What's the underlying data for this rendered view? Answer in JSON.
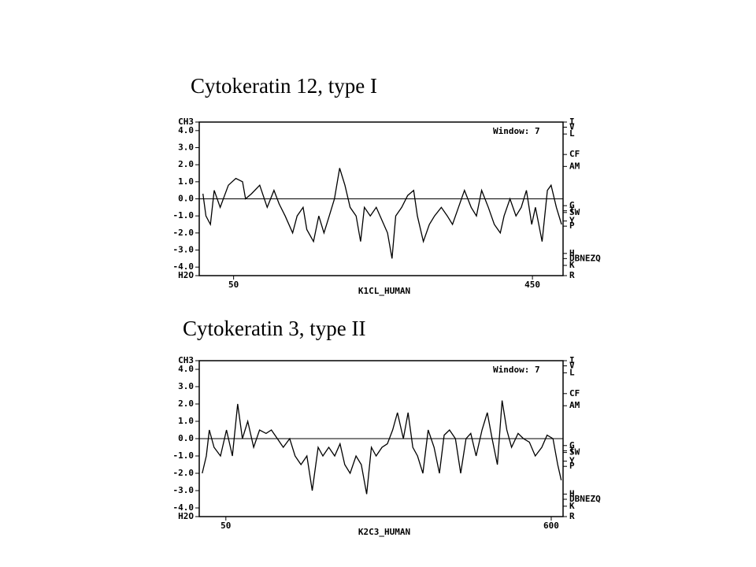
{
  "chart_data": [
    {
      "type": "line",
      "title": "Cytokeratin 12, type I",
      "annotation": "Window: 7",
      "xlabel": "K1CL_HUMAN",
      "xlim": [
        4,
        491
      ],
      "xticks": [
        50,
        450
      ],
      "ylim": [
        -4.5,
        4.5
      ],
      "yticks": [
        {
          "value": 4.5,
          "label": "CH3"
        },
        {
          "value": 4,
          "label": "4.0"
        },
        {
          "value": 3,
          "label": "3.0"
        },
        {
          "value": 2,
          "label": "2.0"
        },
        {
          "value": 1,
          "label": "1.0"
        },
        {
          "value": 0,
          "label": "0.0"
        },
        {
          "value": -1,
          "label": "-1.0"
        },
        {
          "value": -2,
          "label": "-2.0"
        },
        {
          "value": -3,
          "label": "-3.0"
        },
        {
          "value": -4,
          "label": "-4.0"
        },
        {
          "value": -4.5,
          "label": "H2O"
        }
      ],
      "y2lim": [
        -4.5,
        4.5
      ],
      "y2ticks": [
        {
          "value": 4.5,
          "label": "I"
        },
        {
          "value": 4.2,
          "label": "V"
        },
        {
          "value": 3.8,
          "label": "L"
        },
        {
          "value": 2.6,
          "label": "CF"
        },
        {
          "value": 1.9,
          "label": "AM"
        },
        {
          "value": -0.4,
          "label": "G"
        },
        {
          "value": -0.7,
          "label": "T"
        },
        {
          "value": -0.8,
          "label": "SW"
        },
        {
          "value": -1.3,
          "label": "Y"
        },
        {
          "value": -1.6,
          "label": "P"
        },
        {
          "value": -3.2,
          "label": "H"
        },
        {
          "value": -3.5,
          "label": "DBNEZQ"
        },
        {
          "value": -3.9,
          "label": "K"
        },
        {
          "value": -4.5,
          "label": "R"
        }
      ],
      "baseline": 0,
      "color": "#000000",
      "x": [
        9,
        13,
        19,
        24,
        32,
        43,
        53,
        62,
        66,
        74,
        85,
        95,
        104,
        111,
        119,
        129,
        135,
        143,
        148,
        157,
        164,
        171,
        178,
        185,
        192,
        199,
        206,
        214,
        220,
        225,
        233,
        241,
        248,
        256,
        262,
        267,
        275,
        283,
        291,
        296,
        304,
        312,
        319,
        328,
        336,
        343,
        351,
        359,
        368,
        375,
        382,
        391,
        399,
        407,
        412,
        420,
        428,
        435,
        442,
        449,
        454,
        463,
        470,
        475,
        482,
        489
      ],
      "values": [
        0.3,
        -1.0,
        -1.5,
        0.5,
        -0.5,
        0.8,
        1.2,
        1.0,
        0,
        0.3,
        0.8,
        -0.5,
        0.5,
        -0.3,
        -1.0,
        -2.0,
        -1.0,
        -0.5,
        -1.8,
        -2.5,
        -1.0,
        -2.0,
        -1.0,
        0,
        1.8,
        0.8,
        -0.5,
        -1.0,
        -2.5,
        -0.5,
        -1.0,
        -0.5,
        -1.2,
        -2.0,
        -3.5,
        -1.0,
        -0.5,
        0.2,
        0.5,
        -1.0,
        -2.5,
        -1.5,
        -1.0,
        -0.5,
        -1.0,
        -1.5,
        -0.5,
        0.5,
        -0.5,
        -1.0,
        0.5,
        -0.5,
        -1.5,
        -2.0,
        -1.0,
        0.0,
        -1.0,
        -0.5,
        0.5,
        -1.5,
        -0.5,
        -2.5,
        0.5,
        0.8,
        -0.5,
        -1.5
      ]
    },
    {
      "type": "line",
      "title": "Cytokeratin 3, type II",
      "annotation": "Window: 7",
      "xlabel": "K2C3_HUMAN",
      "xlim": [
        5,
        620
      ],
      "xticks": [
        50,
        600
      ],
      "ylim": [
        -4.5,
        4.5
      ],
      "yticks": [
        {
          "value": 4.5,
          "label": "CH3"
        },
        {
          "value": 4,
          "label": "4.0"
        },
        {
          "value": 3,
          "label": "3.0"
        },
        {
          "value": 2,
          "label": "2.0"
        },
        {
          "value": 1,
          "label": "1.0"
        },
        {
          "value": 0,
          "label": "0.0"
        },
        {
          "value": -1,
          "label": "-1.0"
        },
        {
          "value": -2,
          "label": "-2.0"
        },
        {
          "value": -3,
          "label": "-3.0"
        },
        {
          "value": -4,
          "label": "-4.0"
        },
        {
          "value": -4.5,
          "label": "H2O"
        }
      ],
      "y2lim": [
        -4.5,
        4.5
      ],
      "y2ticks": [
        {
          "value": 4.5,
          "label": "I"
        },
        {
          "value": 4.2,
          "label": "V"
        },
        {
          "value": 3.8,
          "label": "L"
        },
        {
          "value": 2.6,
          "label": "CF"
        },
        {
          "value": 1.9,
          "label": "AM"
        },
        {
          "value": -0.4,
          "label": "G"
        },
        {
          "value": -0.7,
          "label": "T"
        },
        {
          "value": -0.8,
          "label": "SW"
        },
        {
          "value": -1.3,
          "label": "Y"
        },
        {
          "value": -1.6,
          "label": "P"
        },
        {
          "value": -3.2,
          "label": "H"
        },
        {
          "value": -3.5,
          "label": "DBNEZQ"
        },
        {
          "value": -3.9,
          "label": "K"
        },
        {
          "value": -4.5,
          "label": "R"
        }
      ],
      "baseline": 0,
      "color": "#000000",
      "x": [
        10,
        17,
        22,
        30,
        41,
        51,
        61,
        70,
        78,
        87,
        97,
        107,
        118,
        127,
        137,
        147,
        158,
        167,
        177,
        187,
        196,
        206,
        214,
        224,
        234,
        243,
        251,
        260,
        270,
        279,
        288,
        296,
        304,
        314,
        323,
        332,
        340,
        350,
        358,
        366,
        374,
        383,
        392,
        402,
        411,
        419,
        428,
        438,
        447,
        456,
        464,
        473,
        483,
        492,
        500,
        509,
        517,
        525,
        533,
        544,
        553,
        563,
        573,
        584,
        593,
        603,
        611,
        617
      ],
      "values": [
        -2.0,
        -1.0,
        0.5,
        -0.5,
        -1.0,
        0.5,
        -1.0,
        2.0,
        0.0,
        1.0,
        -0.5,
        0.5,
        0.3,
        0.5,
        0.0,
        -0.5,
        0,
        -1.0,
        -1.5,
        -1.0,
        -3.0,
        -0.5,
        -1.0,
        -0.5,
        -1.0,
        -0.3,
        -1.5,
        -2.0,
        -1.0,
        -1.5,
        -3.2,
        -0.5,
        -1.0,
        -0.5,
        -0.3,
        0.5,
        1.5,
        0.0,
        1.5,
        -0.5,
        -1.0,
        -2.0,
        0.5,
        -0.5,
        -2.0,
        0.2,
        0.5,
        0,
        -2.0,
        0.0,
        0.3,
        -1.0,
        0.5,
        1.5,
        0.0,
        -1.5,
        2.2,
        0.5,
        -0.5,
        0.3,
        0.0,
        -0.2,
        -1.0,
        -0.5,
        0.2,
        0.0,
        -1.5,
        -2.4
      ]
    }
  ]
}
